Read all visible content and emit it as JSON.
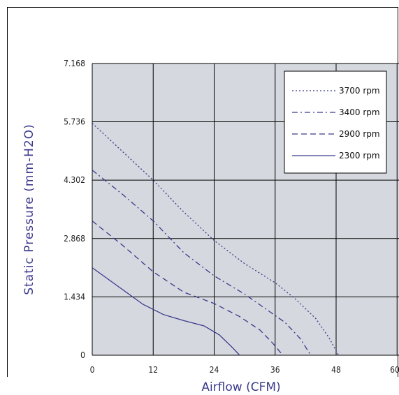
{
  "chart_data": {
    "type": "line",
    "xlabel": "Airflow (CFM)",
    "ylabel": "Static Pressure (mm-H2O)",
    "xlim": [
      0,
      60
    ],
    "ylim": [
      0,
      7.168
    ],
    "x_ticks": [
      "0",
      "12",
      "24",
      "36",
      "48",
      "60"
    ],
    "y_ticks": [
      "0",
      "1.434",
      "2.868",
      "4.302",
      "5.736",
      "7.168"
    ],
    "grid": true,
    "legend_position": "top-right",
    "colors": {
      "series": "#3a3a8c",
      "plot_background": "#d5d8de",
      "grid": "#000000",
      "axis_title": "#3a3a8c"
    },
    "series": [
      {
        "name": "3700 rpm",
        "style": "dotted",
        "points": [
          [
            0,
            5.7
          ],
          [
            6,
            5.0
          ],
          [
            12,
            4.3
          ],
          [
            18,
            3.52
          ],
          [
            24,
            2.82
          ],
          [
            30,
            2.25
          ],
          [
            36,
            1.78
          ],
          [
            40,
            1.38
          ],
          [
            44,
            0.9
          ],
          [
            46.5,
            0.45
          ],
          [
            48.5,
            0
          ]
        ]
      },
      {
        "name": "3400 rpm",
        "style": "dash-dot",
        "points": [
          [
            0,
            4.55
          ],
          [
            6,
            3.95
          ],
          [
            12,
            3.3
          ],
          [
            18,
            2.52
          ],
          [
            24,
            1.95
          ],
          [
            30,
            1.5
          ],
          [
            34,
            1.15
          ],
          [
            38,
            0.8
          ],
          [
            41,
            0.4
          ],
          [
            43,
            0
          ]
        ]
      },
      {
        "name": "2900 rpm",
        "style": "dashed",
        "points": [
          [
            0,
            3.3
          ],
          [
            6,
            2.7
          ],
          [
            12,
            2.05
          ],
          [
            18,
            1.55
          ],
          [
            24,
            1.27
          ],
          [
            29,
            0.95
          ],
          [
            33,
            0.62
          ],
          [
            35.5,
            0.3
          ],
          [
            37.5,
            0
          ]
        ]
      },
      {
        "name": "2300 rpm",
        "style": "solid",
        "points": [
          [
            0,
            2.15
          ],
          [
            5,
            1.7
          ],
          [
            10,
            1.25
          ],
          [
            14,
            1.0
          ],
          [
            18,
            0.85
          ],
          [
            22,
            0.72
          ],
          [
            25,
            0.5
          ],
          [
            27.5,
            0.2
          ],
          [
            29,
            0
          ]
        ]
      }
    ]
  }
}
